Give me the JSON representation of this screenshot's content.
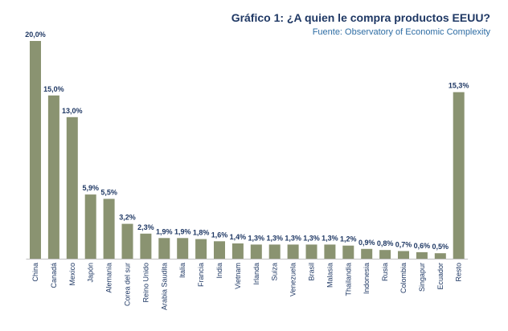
{
  "header": {
    "title": "Gráfico 1: ¿A quien le compra productos EEUU?",
    "subtitle": "Fuente: Observatory of Economic Complexity"
  },
  "colors": {
    "bar": "#8a9371",
    "title": "#1f3864",
    "subtitle": "#2e6da4",
    "label": "#1f3864",
    "axis": "#bfbfbf"
  },
  "chart_data": {
    "type": "bar",
    "title": "Gráfico 1: ¿A quien le compra productos EEUU?",
    "subtitle": "Fuente: Observatory of Economic Complexity",
    "xlabel": "",
    "ylabel": "",
    "ylim": [
      0,
      20
    ],
    "grid": false,
    "legend": "none",
    "categories": [
      "China",
      "Canadá",
      "Mexico",
      "Japón",
      "Alemania",
      "Corea del sur",
      "Reino Unido",
      "Arabia Saudita",
      "Italia",
      "Francia",
      "India",
      "Vietnam",
      "Irlanda",
      "Suiza",
      "Venezuela",
      "Brasil",
      "Malasia",
      "Thailandia",
      "Indonesia",
      "Rusia",
      "Colombia",
      "Singapur",
      "Ecuador",
      "Resto"
    ],
    "values": [
      20.0,
      15.0,
      13.0,
      5.9,
      5.5,
      3.2,
      2.3,
      1.9,
      1.9,
      1.8,
      1.6,
      1.4,
      1.3,
      1.3,
      1.3,
      1.3,
      1.3,
      1.2,
      0.9,
      0.8,
      0.7,
      0.6,
      0.5,
      15.3
    ],
    "data_labels": [
      "20,0%",
      "15,0%",
      "13,0%",
      "5,9%",
      "5,5%",
      "3,2%",
      "2,3%",
      "1,9%",
      "1,9%",
      "1,8%",
      "1,6%",
      "1,4%",
      "1,3%",
      "1,3%",
      "1,3%",
      "1,3%",
      "1,3%",
      "1,2%",
      "0,9%",
      "0,8%",
      "0,7%",
      "0,6%",
      "0,5%",
      "15,3%"
    ]
  }
}
